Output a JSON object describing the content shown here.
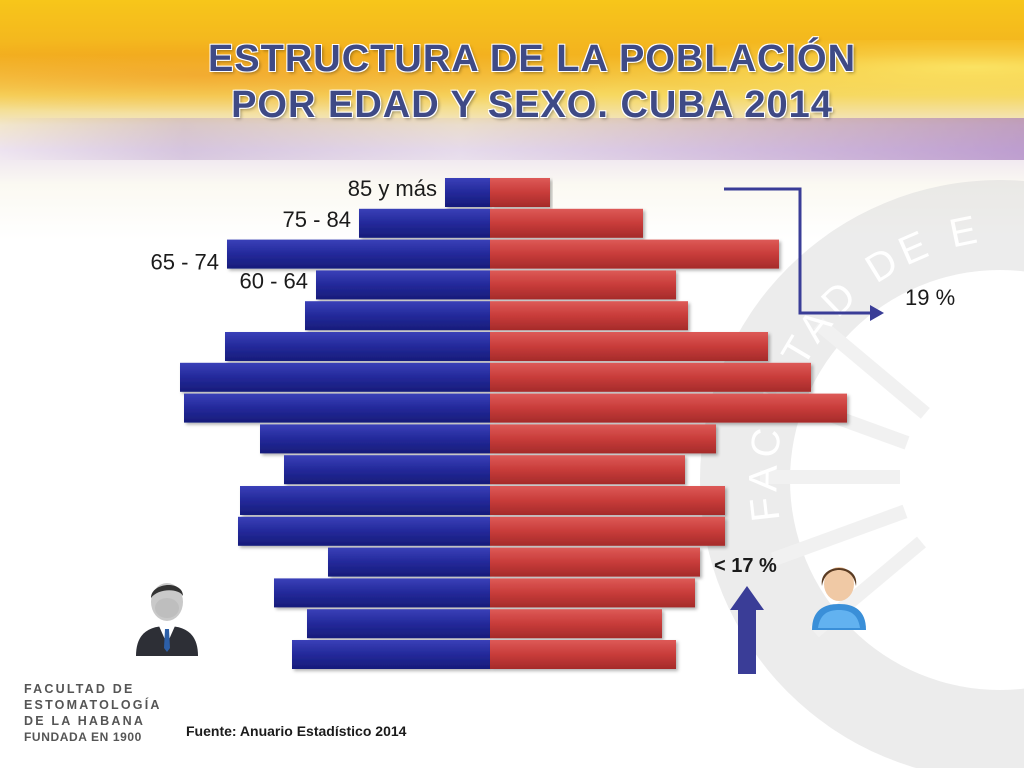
{
  "title": {
    "line1": "ESTRUCTURA DE LA POBLACIÓN",
    "line2": "POR EDAD Y SEXO. CUBA 2014"
  },
  "chart_data": {
    "type": "bar",
    "orientation": "population-pyramid",
    "categories": [
      "85 y más",
      "75 - 84",
      "65 - 74",
      "60 - 64",
      "",
      "",
      "",
      "",
      "",
      "",
      "",
      "",
      "",
      "",
      "",
      ""
    ],
    "labeled_categories": [
      "85 y más",
      "75 - 84",
      "65 - 74",
      "60 - 64"
    ],
    "series": [
      {
        "name": "",
        "side": "left",
        "color": "#23299a",
        "values": [
          45,
          131,
          263,
          174,
          185,
          265,
          310,
          306,
          230,
          206,
          250,
          252,
          162,
          216,
          183,
          198
        ]
      },
      {
        "name": "",
        "side": "right",
        "color": "#c83c3a",
        "values": [
          60,
          153,
          289,
          186,
          198,
          278,
          321,
          357,
          226,
          195,
          235,
          235,
          210,
          205,
          172,
          186
        ]
      }
    ],
    "annotations": [
      {
        "text": "19 %",
        "target": "60 y más"
      },
      {
        "text": "< 17 %",
        "target": "0 - 14"
      }
    ]
  },
  "annotations": {
    "old_pct": "19 %",
    "young_pct": "< 17 %"
  },
  "source": "Fuente: Anuario Estadístico 2014",
  "logo": {
    "line1": "FACULTAD DE",
    "line2": "ESTOMATOLOGÍA",
    "line3": "DE LA HABANA",
    "line4": "FUNDADA EN 1900"
  },
  "watermark_text": "FACULTAD DE ESTOMATOLOGÍA",
  "icons": {
    "male": "man-in-suit-icon",
    "female": "woman-avatar-icon"
  },
  "colors": {
    "male": "#23299a",
    "female": "#c83c3a",
    "arrow": "#3a3d97",
    "title": "#3f4a86"
  }
}
